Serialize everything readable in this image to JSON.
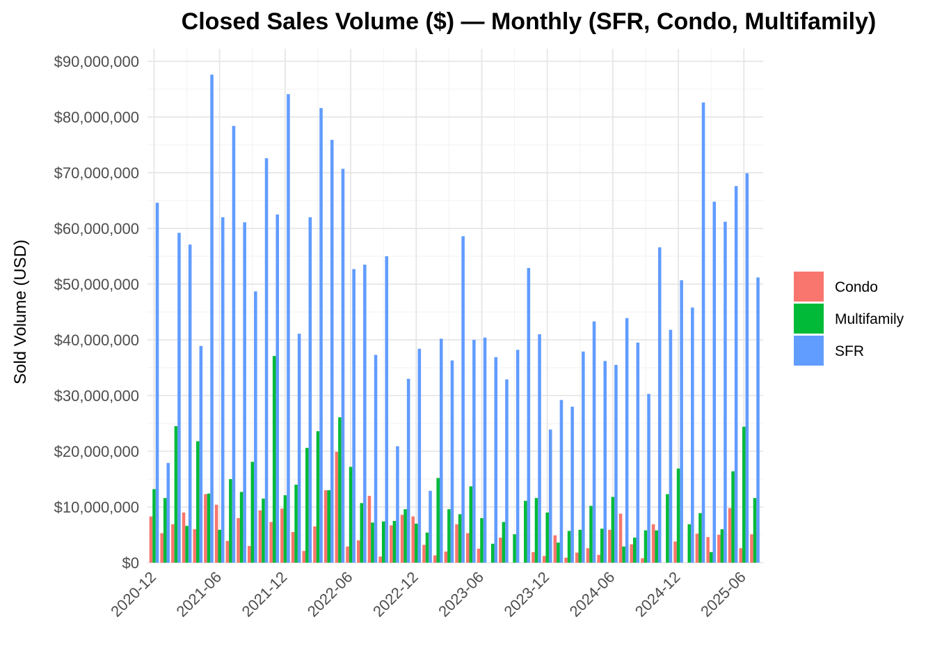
{
  "chart_data": {
    "type": "bar",
    "title": "Closed Sales Volume ($) — Monthly (SFR, Condo, Multifamily)",
    "xlabel": "",
    "ylabel": "Sold Volume (USD)",
    "ylim": [
      0,
      90000000
    ],
    "yticks": [
      {
        "value": 0,
        "label": "$0"
      },
      {
        "value": 10000000,
        "label": "$10,000,000"
      },
      {
        "value": 20000000,
        "label": "$20,000,000"
      },
      {
        "value": 30000000,
        "label": "$30,000,000"
      },
      {
        "value": 40000000,
        "label": "$40,000,000"
      },
      {
        "value": 50000000,
        "label": "$50,000,000"
      },
      {
        "value": 60000000,
        "label": "$60,000,000"
      },
      {
        "value": 70000000,
        "label": "$70,000,000"
      },
      {
        "value": 80000000,
        "label": "$80,000,000"
      },
      {
        "value": 90000000,
        "label": "$90,000,000"
      }
    ],
    "xticks": [
      {
        "category": "2020-12",
        "label": "2020-12"
      },
      {
        "category": "2021-06",
        "label": "2021-06"
      },
      {
        "category": "2021-12",
        "label": "2021-12"
      },
      {
        "category": "2022-06",
        "label": "2022-06"
      },
      {
        "category": "2022-12",
        "label": "2022-12"
      },
      {
        "category": "2023-06",
        "label": "2023-06"
      },
      {
        "category": "2023-12",
        "label": "2023-12"
      },
      {
        "category": "2024-06",
        "label": "2024-06"
      },
      {
        "category": "2024-12",
        "label": "2024-12"
      },
      {
        "category": "2025-06",
        "label": "2025-06"
      }
    ],
    "grid": true,
    "legend_position": "right",
    "categories": [
      "2020-12",
      "2021-01",
      "2021-02",
      "2021-03",
      "2021-04",
      "2021-05",
      "2021-06",
      "2021-07",
      "2021-08",
      "2021-09",
      "2021-10",
      "2021-11",
      "2021-12",
      "2022-01",
      "2022-02",
      "2022-03",
      "2022-04",
      "2022-05",
      "2022-06",
      "2022-07",
      "2022-08",
      "2022-09",
      "2022-10",
      "2022-11",
      "2022-12",
      "2023-01",
      "2023-02",
      "2023-03",
      "2023-04",
      "2023-05",
      "2023-06",
      "2023-07",
      "2023-08",
      "2023-09",
      "2023-10",
      "2023-11",
      "2023-12",
      "2024-01",
      "2024-02",
      "2024-03",
      "2024-04",
      "2024-05",
      "2024-06",
      "2024-07",
      "2024-08",
      "2024-09",
      "2024-10",
      "2024-11",
      "2024-12",
      "2025-01",
      "2025-02",
      "2025-03",
      "2025-04",
      "2025-05",
      "2025-06",
      "2025-07"
    ],
    "series": [
      {
        "name": "Condo",
        "color": "#F8766D",
        "values": [
          8300000,
          5300000,
          6900000,
          9000000,
          6000000,
          12300000,
          10400000,
          3900000,
          8000000,
          3000000,
          9400000,
          7300000,
          9700000,
          5500000,
          2100000,
          6500000,
          13000000,
          19900000,
          2900000,
          4000000,
          12000000,
          1100000,
          6700000,
          8600000,
          8300000,
          3200000,
          1300000,
          2000000,
          6900000,
          5300000,
          2500000,
          0,
          4500000,
          0,
          0,
          1900000,
          1200000,
          4900000,
          900000,
          1800000,
          2600000,
          1400000,
          5900000,
          8800000,
          3300000,
          800000,
          6900000,
          0,
          3800000,
          0,
          5200000,
          4600000,
          5000000,
          9800000,
          2600000,
          5100000
        ]
      },
      {
        "name": "Multifamily",
        "color": "#00BA38",
        "values": [
          13200000,
          11600000,
          24500000,
          6600000,
          21800000,
          12400000,
          5900000,
          15000000,
          12700000,
          18100000,
          11500000,
          37100000,
          12100000,
          14000000,
          20600000,
          23600000,
          13000000,
          26100000,
          17200000,
          10700000,
          7200000,
          7400000,
          7500000,
          9600000,
          7000000,
          5400000,
          15200000,
          9600000,
          8700000,
          13700000,
          8000000,
          3400000,
          7300000,
          5100000,
          11100000,
          11600000,
          9000000,
          3600000,
          5700000,
          5900000,
          10200000,
          6100000,
          11800000,
          2900000,
          4500000,
          5800000,
          5800000,
          12300000,
          16900000,
          6900000,
          8900000,
          1900000,
          6000000,
          16400000,
          24400000,
          11600000
        ]
      },
      {
        "name": "SFR",
        "color": "#619CFF",
        "values": [
          64600000,
          17900000,
          59200000,
          57100000,
          38900000,
          87600000,
          62000000,
          78400000,
          61100000,
          48700000,
          72600000,
          62500000,
          84100000,
          41100000,
          62000000,
          81600000,
          75900000,
          70700000,
          52700000,
          53500000,
          37300000,
          55000000,
          20900000,
          33000000,
          38400000,
          12900000,
          40200000,
          36300000,
          58600000,
          40000000,
          40400000,
          36900000,
          32900000,
          38200000,
          52900000,
          41000000,
          23900000,
          29200000,
          28000000,
          37900000,
          43300000,
          36200000,
          35500000,
          43900000,
          39500000,
          30300000,
          56600000,
          41800000,
          50700000,
          45800000,
          82600000,
          64800000,
          61200000,
          67600000,
          69900000,
          51200000
        ]
      }
    ]
  }
}
